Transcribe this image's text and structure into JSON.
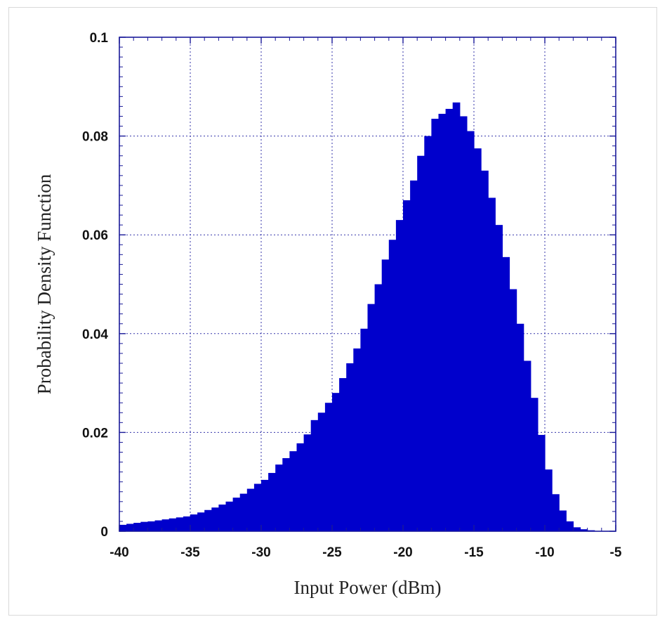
{
  "chart_data": {
    "type": "bar",
    "title": "",
    "xlabel": "Input Power (dBm)",
    "ylabel": "Probability Density Function",
    "xlim": [
      -40,
      -5
    ],
    "ylim": [
      0,
      0.1
    ],
    "x_ticks": [
      -40,
      -35,
      -30,
      -25,
      -20,
      -15,
      -10,
      -5
    ],
    "x_tick_labels": [
      "-40",
      "-35",
      "-30",
      "-25",
      "-20",
      "-15",
      "-10",
      "-5"
    ],
    "y_ticks": [
      0,
      0.02,
      0.04,
      0.06,
      0.08,
      0.1
    ],
    "y_tick_labels": [
      "0",
      "0.02",
      "0.04",
      "0.06",
      "0.08",
      "0.1"
    ],
    "grid": true,
    "bar_color": "#0000cc",
    "bin_width": 0.5,
    "x": [
      -39.75,
      -39.25,
      -38.75,
      -38.25,
      -37.75,
      -37.25,
      -36.75,
      -36.25,
      -35.75,
      -35.25,
      -34.75,
      -34.25,
      -33.75,
      -33.25,
      -32.75,
      -32.25,
      -31.75,
      -31.25,
      -30.75,
      -30.25,
      -29.75,
      -29.25,
      -28.75,
      -28.25,
      -27.75,
      -27.25,
      -26.75,
      -26.25,
      -25.75,
      -25.25,
      -24.75,
      -24.25,
      -23.75,
      -23.25,
      -22.75,
      -22.25,
      -21.75,
      -21.25,
      -20.75,
      -20.25,
      -19.75,
      -19.25,
      -18.75,
      -18.25,
      -17.75,
      -17.25,
      -16.75,
      -16.25,
      -15.75,
      -15.25,
      -14.75,
      -14.25,
      -13.75,
      -13.25,
      -12.75,
      -12.25,
      -11.75,
      -11.25,
      -10.75,
      -10.25,
      -9.75,
      -9.25,
      -8.75,
      -8.25,
      -7.75,
      -7.25,
      -6.75
    ],
    "values": [
      0.0013,
      0.0015,
      0.0017,
      0.0019,
      0.002,
      0.0022,
      0.0024,
      0.0026,
      0.0028,
      0.003,
      0.0034,
      0.0038,
      0.0043,
      0.0048,
      0.0054,
      0.006,
      0.0068,
      0.0076,
      0.0086,
      0.0096,
      0.0104,
      0.0118,
      0.0135,
      0.0148,
      0.0162,
      0.0178,
      0.0196,
      0.0225,
      0.024,
      0.026,
      0.028,
      0.031,
      0.034,
      0.037,
      0.041,
      0.046,
      0.05,
      0.055,
      0.059,
      0.063,
      0.067,
      0.071,
      0.076,
      0.08,
      0.0835,
      0.0845,
      0.0855,
      0.0868,
      0.084,
      0.081,
      0.0775,
      0.073,
      0.0675,
      0.062,
      0.0555,
      0.049,
      0.042,
      0.0345,
      0.027,
      0.0195,
      0.0125,
      0.0075,
      0.0042,
      0.002,
      0.0008,
      0.0004,
      0.0002
    ]
  }
}
